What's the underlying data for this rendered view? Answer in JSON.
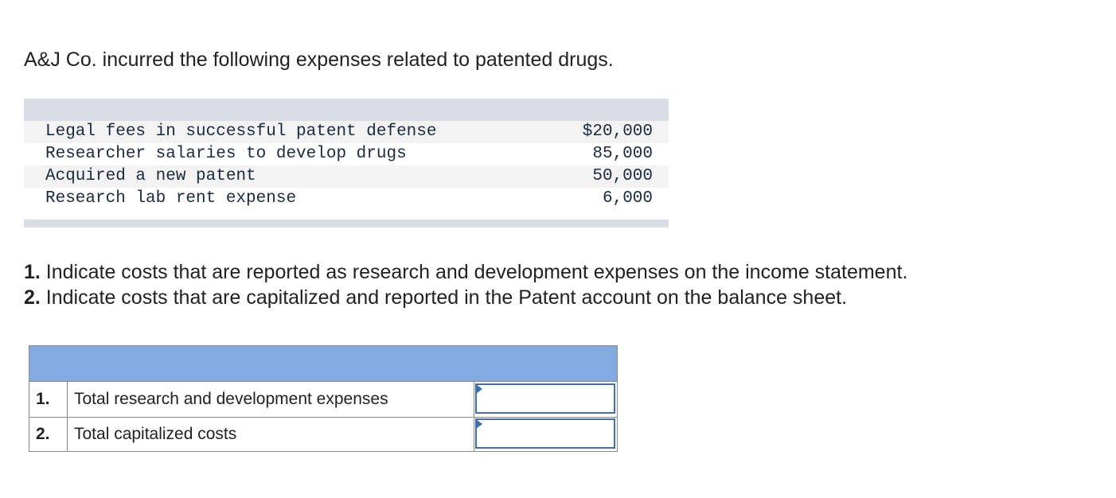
{
  "intro": "A&J Co. incurred the following expenses related to patented drugs.",
  "expenses": [
    {
      "description": "Legal fees in successful patent defense",
      "amount": "$20,000"
    },
    {
      "description": "Researcher salaries to develop drugs",
      "amount": "85,000"
    },
    {
      "description": "Acquired a new patent",
      "amount": "50,000"
    },
    {
      "description": "Research lab rent expense",
      "amount": "6,000"
    }
  ],
  "instructions": [
    {
      "num": "1.",
      "text": " Indicate costs that are reported as research and development expenses on the income statement."
    },
    {
      "num": "2.",
      "text": " Indicate costs that are capitalized and reported in the Patent account on the balance sheet."
    }
  ],
  "answer_rows": [
    {
      "num": "1.",
      "label": "Total research and development expenses",
      "value": ""
    },
    {
      "num": "2.",
      "label": "Total capitalized costs",
      "value": ""
    }
  ]
}
